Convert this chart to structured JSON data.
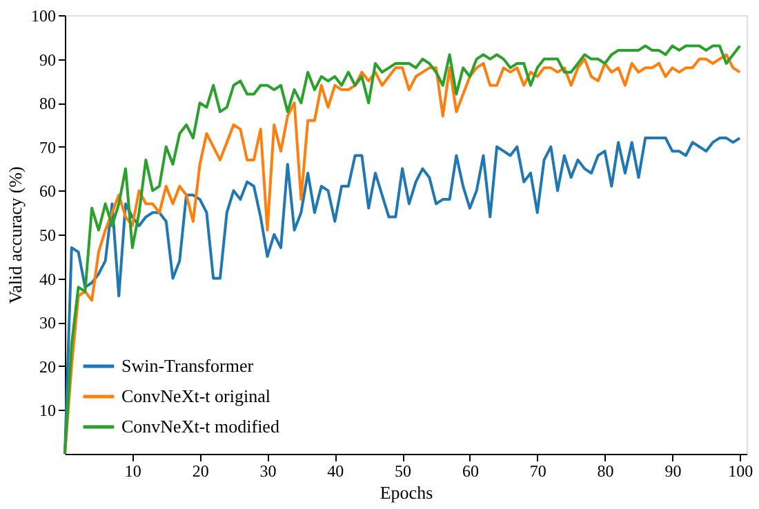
{
  "chart_data": {
    "type": "line",
    "xlabel": "Epochs",
    "ylabel": "Valid accuracy  (%)",
    "x": [
      0,
      1,
      2,
      3,
      4,
      5,
      6,
      7,
      8,
      9,
      10,
      11,
      12,
      13,
      14,
      15,
      16,
      17,
      18,
      19,
      20,
      21,
      22,
      23,
      24,
      25,
      26,
      27,
      28,
      29,
      30,
      31,
      32,
      33,
      34,
      35,
      36,
      37,
      38,
      39,
      40,
      41,
      42,
      43,
      44,
      45,
      46,
      47,
      48,
      49,
      50,
      51,
      52,
      53,
      54,
      55,
      56,
      57,
      58,
      59,
      60,
      61,
      62,
      63,
      64,
      65,
      66,
      67,
      68,
      69,
      70,
      71,
      72,
      73,
      74,
      75,
      76,
      77,
      78,
      79,
      80,
      81,
      82,
      83,
      84,
      85,
      86,
      87,
      88,
      89,
      90,
      91,
      92,
      93,
      94,
      95,
      96,
      97,
      98,
      99,
      100
    ],
    "series": [
      {
        "name": "Swin-Transformer",
        "color": "#1f77b4",
        "values": [
          0,
          47,
          46,
          38,
          39,
          41,
          44,
          57,
          36,
          57,
          54,
          52,
          54,
          55,
          55,
          53,
          40,
          44,
          59,
          59,
          58,
          55,
          40,
          40,
          55,
          60,
          58,
          62,
          61,
          54,
          45,
          50,
          47,
          66,
          51,
          55,
          64,
          55,
          61,
          60,
          53,
          61,
          61,
          68,
          68,
          56,
          64,
          59,
          54,
          54,
          65,
          57,
          62,
          65,
          63,
          57,
          58,
          58,
          68,
          61,
          56,
          60,
          68,
          54,
          70,
          69,
          68,
          70,
          62,
          64,
          55,
          67,
          70,
          60,
          68,
          63,
          67,
          65,
          64,
          68,
          69,
          61,
          71,
          64,
          71,
          63,
          72,
          72,
          72,
          72,
          69,
          69,
          68,
          71,
          70,
          69,
          71,
          72,
          72,
          71,
          72
        ]
      },
      {
        "name": "ConvNeXt-t original",
        "color": "#ff7f0e",
        "values": [
          0,
          20,
          36,
          37,
          35,
          46,
          51,
          55,
          59,
          54,
          52,
          60,
          57,
          57,
          55,
          61,
          57,
          61,
          59,
          53,
          66,
          73,
          70,
          67,
          71,
          75,
          74,
          67,
          67,
          74,
          51,
          75,
          69,
          77,
          80,
          58,
          76,
          76,
          84,
          79,
          84,
          83,
          83,
          84,
          87,
          85,
          87,
          84,
          86,
          88,
          88,
          83,
          86,
          87,
          88,
          88,
          77,
          88,
          78,
          82,
          86,
          88,
          89,
          84,
          84,
          88,
          87,
          88,
          84,
          87,
          86,
          88,
          88,
          87,
          88,
          84,
          88,
          90,
          86,
          85,
          89,
          87,
          88,
          84,
          89,
          87,
          88,
          88,
          89,
          86,
          88,
          87,
          88,
          88,
          90,
          90,
          89,
          90,
          91,
          88,
          87
        ]
      },
      {
        "name": "ConvNeXt-t modified",
        "color": "#2ca02c",
        "values": [
          0,
          25,
          38,
          37,
          56,
          51,
          57,
          52,
          57,
          65,
          47,
          55,
          67,
          60,
          61,
          70,
          66,
          73,
          75,
          72,
          80,
          79,
          84,
          78,
          79,
          84,
          85,
          82,
          82,
          84,
          84,
          83,
          84,
          78,
          83,
          80,
          87,
          83,
          86,
          85,
          86,
          84,
          87,
          84,
          86,
          80,
          89,
          87,
          88,
          89,
          89,
          89,
          88,
          90,
          89,
          87,
          84,
          91,
          82,
          88,
          86,
          90,
          91,
          90,
          91,
          90,
          88,
          89,
          89,
          84,
          88,
          90,
          90,
          90,
          87,
          87,
          89,
          91,
          90,
          90,
          89,
          91,
          92,
          92,
          92,
          92,
          93,
          92,
          92,
          91,
          93,
          92,
          93,
          93,
          93,
          92,
          93,
          93,
          89,
          91,
          93
        ]
      }
    ],
    "xlim": [
      0,
      101
    ],
    "xticks": [
      10,
      20,
      30,
      40,
      50,
      60,
      70,
      80,
      90,
      100
    ],
    "ylim": [
      0,
      100
    ],
    "yticks": [
      10,
      20,
      30,
      40,
      50,
      60,
      70,
      80,
      90,
      100
    ],
    "grid": false,
    "legend": "bottom left",
    "marker": "none",
    "line_style": "solid"
  }
}
